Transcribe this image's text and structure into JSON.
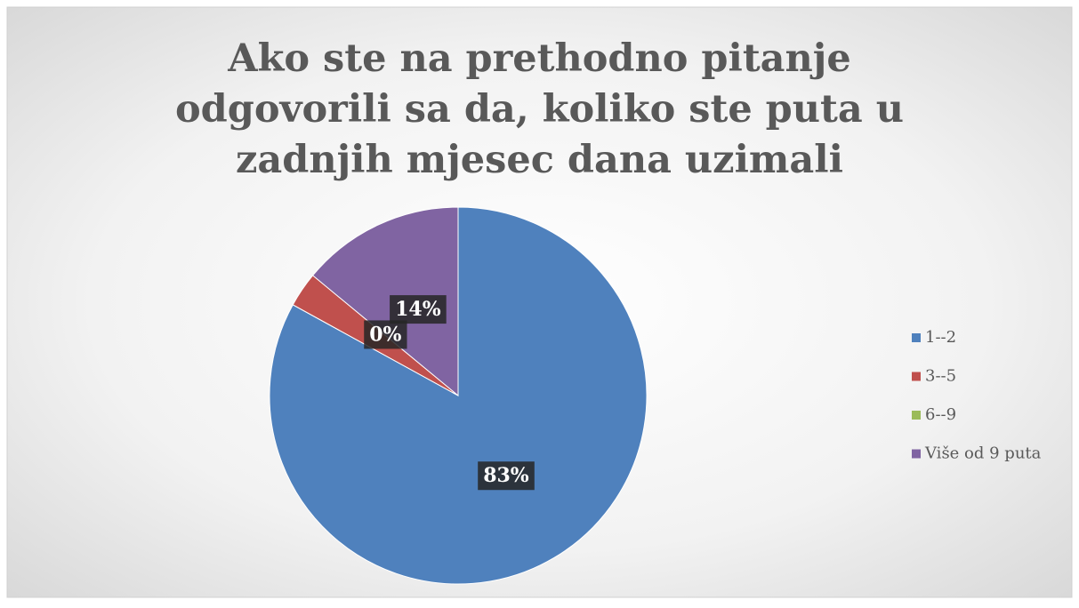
{
  "chart_data": {
    "type": "pie",
    "title": "Ako ste na prethodno pitanje odgovorili sa da, koliko ste puta u zadnjih mjesec dana uzimali marihuanu?;",
    "categories": [
      "1--2",
      "3--5",
      "6--9",
      "Više od 9 puta"
    ],
    "values": [
      83,
      3,
      0,
      14
    ],
    "value_labels": [
      "83%",
      null,
      "0%",
      "14%"
    ],
    "colors": [
      "#4f81bd",
      "#c0504d",
      "#9bbb59",
      "#8064a2"
    ],
    "legend": "right"
  }
}
